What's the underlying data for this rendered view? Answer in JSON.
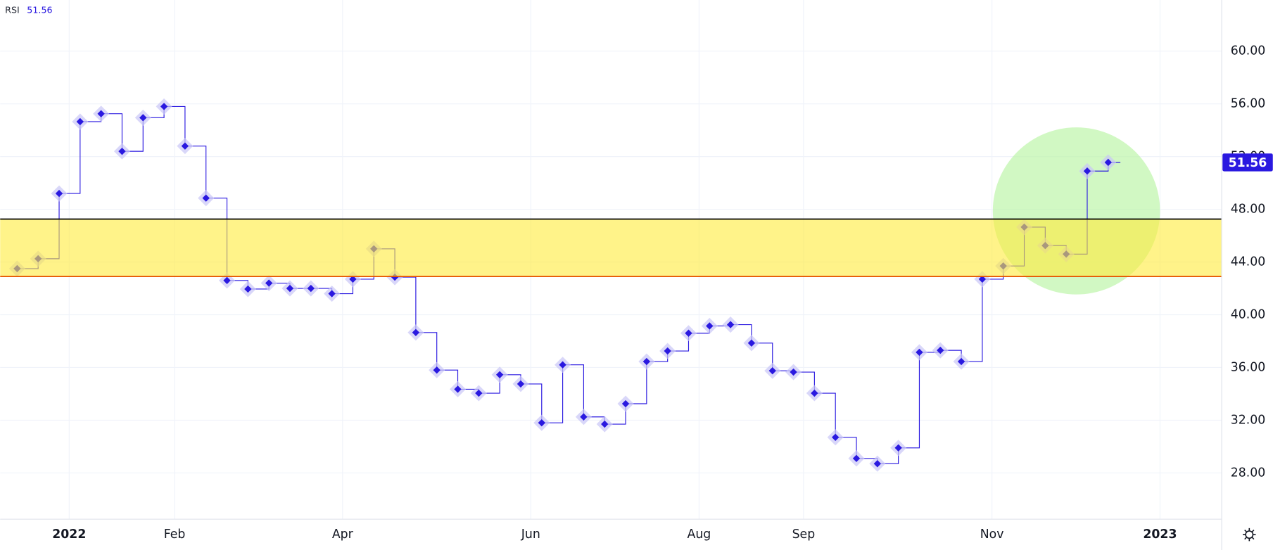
{
  "chart_data": {
    "type": "step",
    "indicator": "RSI",
    "values": [
      43.5,
      44.25,
      49.2,
      54.65,
      55.25,
      52.4,
      54.95,
      55.8,
      52.8,
      48.85,
      42.6,
      41.95,
      42.4,
      42.0,
      42.0,
      41.6,
      42.7,
      45.0,
      42.85,
      38.65,
      35.8,
      34.35,
      34.05,
      35.45,
      34.75,
      31.8,
      36.2,
      32.25,
      31.7,
      33.25,
      36.45,
      37.25,
      38.6,
      39.15,
      39.25,
      37.85,
      35.75,
      35.65,
      34.05,
      30.7,
      29.1,
      28.7,
      29.9,
      37.15,
      37.3,
      36.45,
      42.7,
      43.7,
      46.65,
      45.25,
      44.6,
      50.9,
      51.56
    ],
    "color": "#2a19e0",
    "xlim": [
      -0.81,
      57.41
    ],
    "xticks": [
      {
        "value": 2.48,
        "label": "2022"
      },
      {
        "value": 7.5,
        "label": "Feb"
      },
      {
        "value": 15.51,
        "label": "Apr"
      },
      {
        "value": 24.48,
        "label": "Jun"
      },
      {
        "value": 32.5,
        "label": "Aug"
      },
      {
        "value": 37.48,
        "label": "Sep"
      },
      {
        "value": 46.46,
        "label": "Nov"
      },
      {
        "value": 54.47,
        "label": "2023"
      }
    ],
    "ylim": [
      24.49,
      63.88
    ],
    "yticks": [
      {
        "value": 28,
        "label": "28.00"
      },
      {
        "value": 32,
        "label": "32.00"
      },
      {
        "value": 36,
        "label": "36.00"
      },
      {
        "value": 40,
        "label": "40.00"
      },
      {
        "value": 44,
        "label": "44.00"
      },
      {
        "value": 48,
        "label": "48.00"
      },
      {
        "value": 52,
        "label": "52.00"
      },
      {
        "value": 56,
        "label": "56.00"
      },
      {
        "value": 60,
        "label": "60.00"
      }
    ],
    "grid": true,
    "levels": [
      {
        "value": 47.26,
        "color": "#000000"
      },
      {
        "value": 42.9,
        "color": "#e65100"
      }
    ],
    "band_color": "#ffeb3b"
  }
}
